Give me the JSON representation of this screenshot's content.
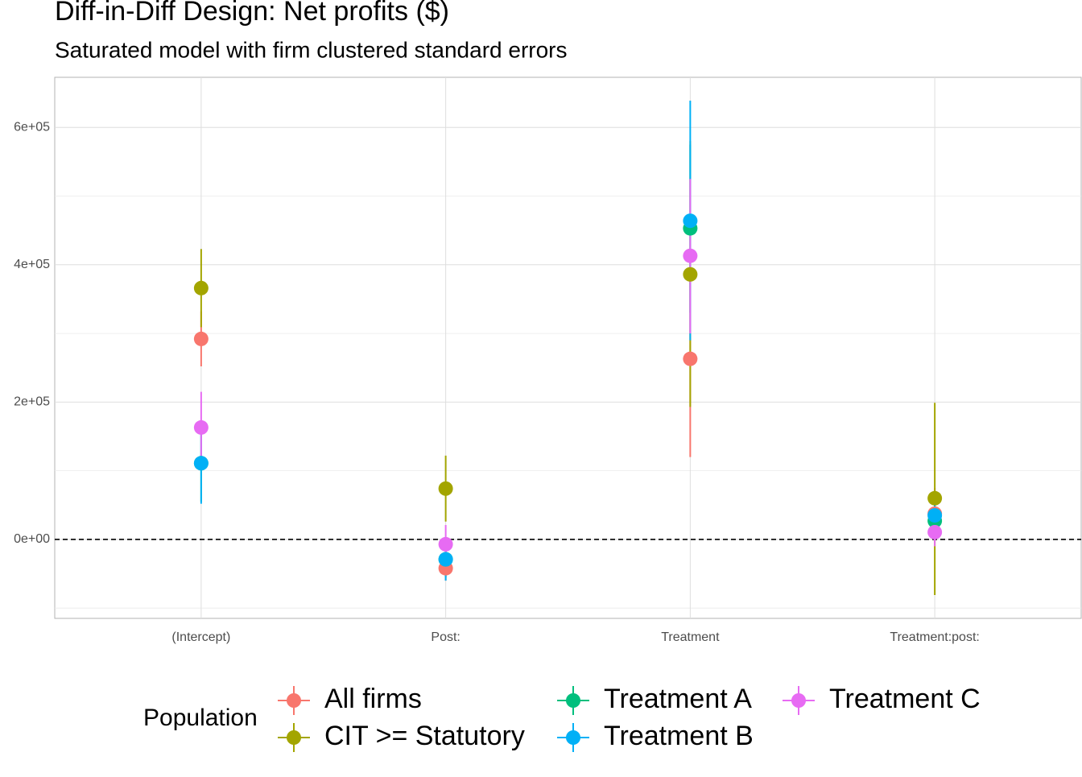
{
  "chart_data": {
    "type": "pointrange",
    "title": "Diff-in-Diff Design: Net profits  ($)",
    "subtitle": "Saturated model with firm clustered standard errors",
    "categories": [
      "(Intercept)",
      "Post:",
      "Treatment",
      "Treatment:post:"
    ],
    "ylim": [
      -115000,
      673000
    ],
    "yticks": [
      {
        "value": 0,
        "label": "0e+00"
      },
      {
        "value": 200000,
        "label": "2e+05"
      },
      {
        "value": 400000,
        "label": "4e+05"
      },
      {
        "value": 600000,
        "label": "6e+05"
      }
    ],
    "yminor": [
      -100000,
      100000,
      300000,
      500000
    ],
    "hline": 0,
    "grid": true,
    "legend_title": "Population",
    "legend_position": "bottom",
    "series": [
      {
        "name": "All firms",
        "color": "#F8766D",
        "values": [
          292000,
          -42000,
          263000,
          37500
        ],
        "lo": [
          252000,
          -60000,
          120000,
          0
        ],
        "hi": [
          332000,
          -24000,
          406000,
          75000
        ]
      },
      {
        "name": "CIT >= Statutory",
        "color": "#A3A500",
        "values": [
          366000,
          74000,
          386000,
          60000
        ],
        "lo": [
          309000,
          26000,
          193000,
          -81000
        ],
        "hi": [
          423000,
          122000,
          580000,
          199000
        ]
      },
      {
        "name": "Treatment A",
        "color": "#00BF7D",
        "values": [
          111000,
          -29000,
          453000,
          27000
        ],
        "lo": [
          55000,
          -55000,
          330000,
          5000
        ],
        "hi": [
          168000,
          -3000,
          575000,
          50000
        ]
      },
      {
        "name": "Treatment B",
        "color": "#00B0F6",
        "values": [
          111000,
          -29000,
          464000,
          35000
        ],
        "lo": [
          52000,
          -60000,
          290000,
          10000
        ],
        "hi": [
          171000,
          1000,
          639000,
          60000
        ]
      },
      {
        "name": "Treatment C",
        "color": "#E76BF3",
        "values": [
          163000,
          -7000,
          413000,
          10500
        ],
        "lo": [
          111000,
          -35000,
          300000,
          -10000
        ],
        "hi": [
          215000,
          21000,
          525000,
          30000
        ]
      }
    ]
  }
}
